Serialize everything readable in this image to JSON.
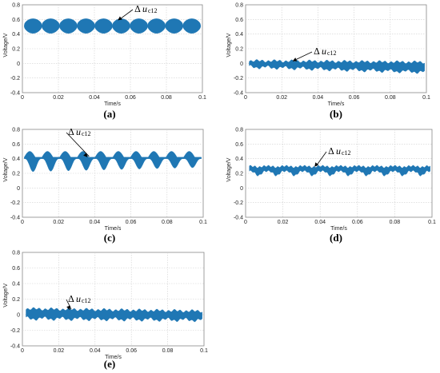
{
  "chart_data": [
    {
      "type": "line",
      "panel_label": "(a)",
      "xlabel": "Time/s",
      "ylabel": "Voltage/V",
      "xlim": [
        0,
        0.1
      ],
      "ylim": [
        -0.4,
        0.8
      ],
      "x_ticks": [
        "0",
        "0.02",
        "0.04",
        "0.06",
        "0.08",
        "0.1"
      ],
      "y_ticks": [
        "-0.4",
        "-0.2",
        "0",
        "0.2",
        "0.4",
        "0.6",
        "0.8"
      ],
      "grid": true,
      "annotation": {
        "delta": "Δ",
        "symbol": "u",
        "subscript": "c12",
        "at_x": 0.053
      },
      "series": [
        {
          "color": "#1f77b4",
          "cycles": 10,
          "x_start": 0.001,
          "x_end": 0.099,
          "upper_peak": 0.61,
          "upper_valley": 0.52,
          "lower_peak": 0.5,
          "lower_valley": 0.41
        }
      ]
    },
    {
      "type": "line",
      "panel_label": "(b)",
      "xlabel": "Time/s",
      "ylabel": "Voltage/V",
      "xlim": [
        0,
        0.1
      ],
      "ylim": [
        -0.4,
        0.8
      ],
      "x_ticks": [
        "0",
        "0.02",
        "0.04",
        "0.06",
        "0.08",
        "0.1"
      ],
      "y_ticks": [
        "-0.4",
        "-0.2",
        "0",
        "0.2",
        "0.4",
        "0.6",
        "0.8"
      ],
      "grid": true,
      "annotation": {
        "delta": "Δ",
        "symbol": "u",
        "subscript": "c12",
        "at_x": 0.026
      },
      "series": [
        {
          "color": "#1f77b4",
          "cycles": 10,
          "x_start": 0.002,
          "x_end": 0.099,
          "upper_start": 0.04,
          "upper_end": 0.02,
          "lower_start": -0.05,
          "lower_end": -0.12
        }
      ]
    },
    {
      "type": "line",
      "panel_label": "(c)",
      "xlabel": "Time/s",
      "ylabel": "Voltage/V",
      "xlim": [
        0,
        0.1
      ],
      "ylim": [
        -0.4,
        0.8
      ],
      "x_ticks": [
        "0",
        "0.02",
        "0.04",
        "0.06",
        "0.08",
        "0.1"
      ],
      "y_ticks": [
        "-0.4",
        "-0.2",
        "0",
        "0.2",
        "0.4",
        "0.6",
        "0.8"
      ],
      "grid": true,
      "annotation": {
        "delta": "Δ",
        "symbol": "u",
        "subscript": "c12",
        "at_x": 0.036
      },
      "series": [
        {
          "color": "#1f77b4",
          "cycles": 10,
          "x_start": 0.001,
          "x_end": 0.099,
          "upper_peak": 0.5,
          "upper_valley": 0.42,
          "lower_start": 0.22,
          "lower_end": 0.28,
          "lower_valley_top": 0.4
        }
      ]
    },
    {
      "type": "line",
      "panel_label": "(d)",
      "xlabel": "Time/s",
      "ylabel": "Voltage/V",
      "xlim": [
        0,
        0.1
      ],
      "ylim": [
        -0.4,
        0.8
      ],
      "x_ticks": [
        "0",
        "0.02",
        "0.04",
        "0.06",
        "0.08",
        "0.1"
      ],
      "y_ticks": [
        "-0.4",
        "-0.2",
        "0",
        "0.2",
        "0.4",
        "0.6",
        "0.8"
      ],
      "grid": true,
      "annotation": {
        "delta": "Δ",
        "symbol": "u",
        "subscript": "c12",
        "at_x": 0.037
      },
      "series": [
        {
          "color": "#1f77b4",
          "cycles": 10,
          "x_start": 0.002,
          "x_end": 0.099,
          "upper_peak": 0.3,
          "lower_valley": 0.17,
          "mid": 0.26
        }
      ]
    },
    {
      "type": "line",
      "panel_label": "(e)",
      "xlabel": "Time/s",
      "ylabel": "Voltage/V",
      "xlim": [
        0,
        0.1
      ],
      "ylim": [
        -0.4,
        0.8
      ],
      "x_ticks": [
        "0",
        "0.02",
        "0.04",
        "0.06",
        "0.08",
        "0.1"
      ],
      "y_ticks": [
        "-0.4",
        "-0.2",
        "0",
        "0.2",
        "0.4",
        "0.6",
        "0.8"
      ],
      "grid": true,
      "annotation": {
        "delta": "Δ",
        "symbol": "u",
        "subscript": "c12",
        "at_x": 0.026
      },
      "series": [
        {
          "color": "#1f77b4",
          "cycles": 10,
          "x_start": 0.002,
          "x_end": 0.099,
          "upper_start": 0.08,
          "upper_end": 0.05,
          "lower_start": -0.05,
          "lower_end": -0.07
        }
      ]
    }
  ]
}
